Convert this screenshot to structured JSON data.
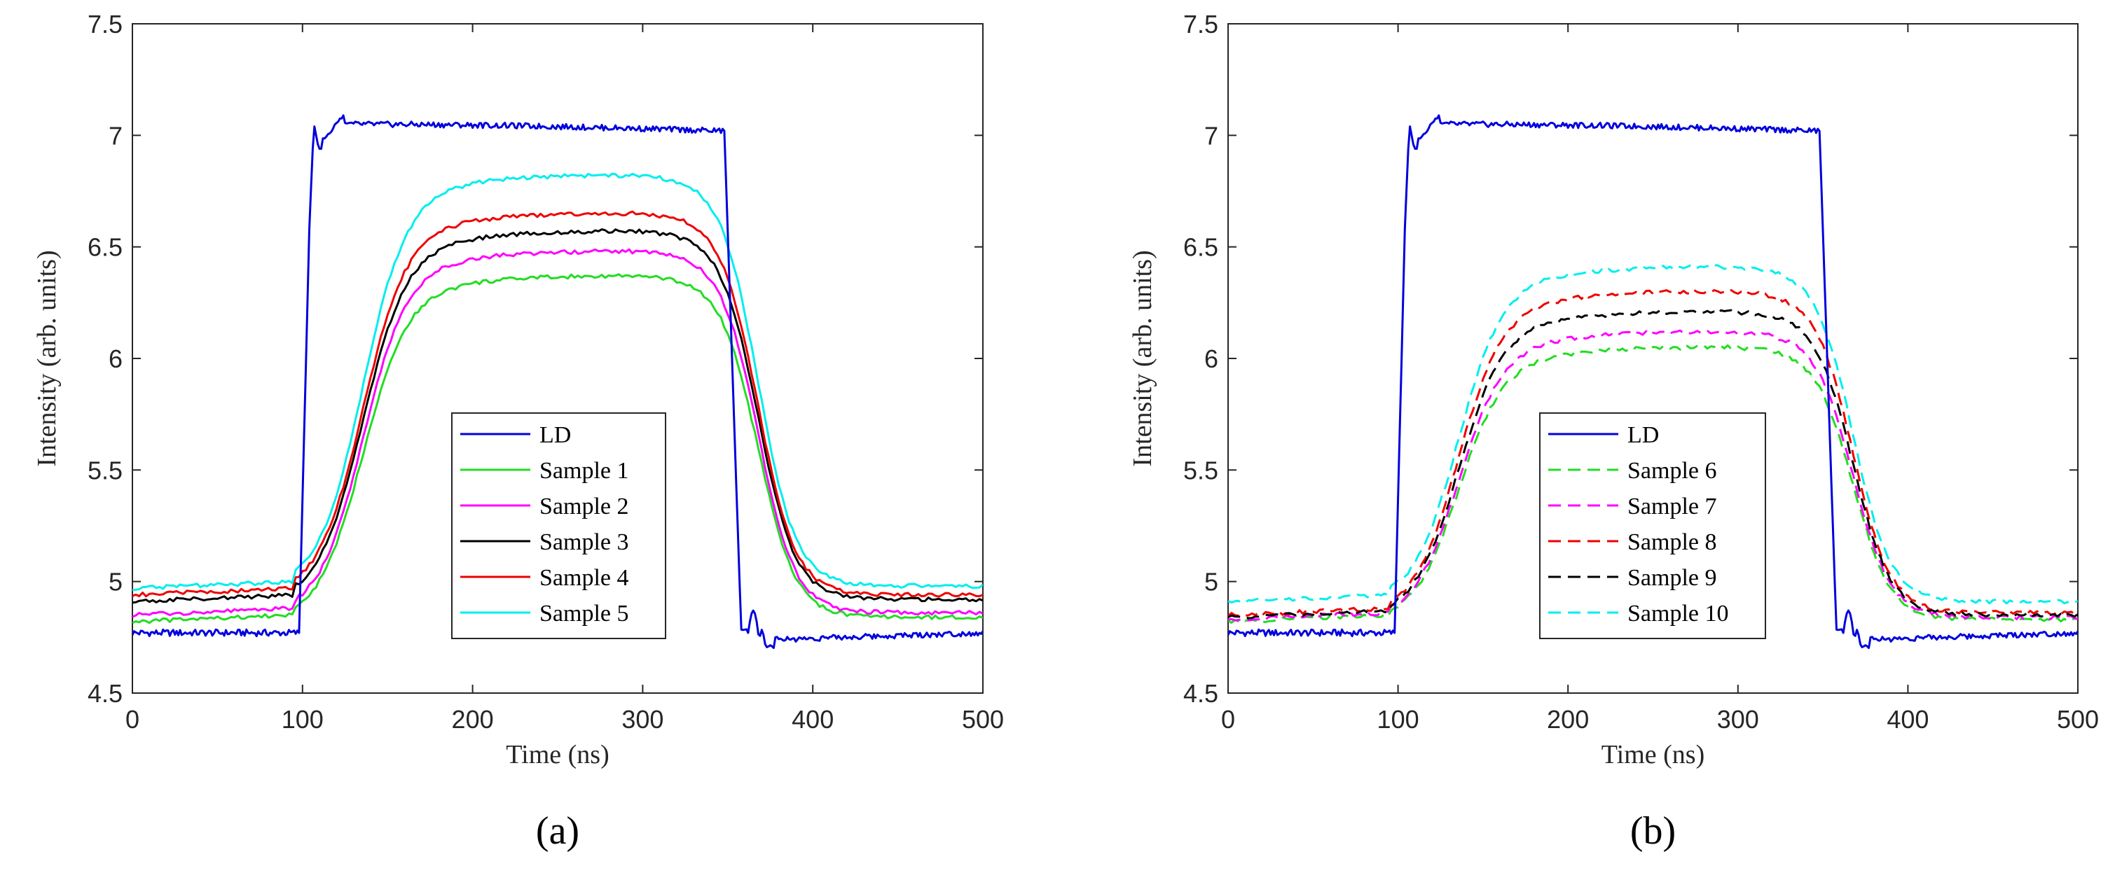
{
  "chart_data": [
    {
      "type": "line",
      "panel_label": "(a)",
      "xlabel": "Time (ns)",
      "ylabel": "Intensity (arb. units)",
      "xlim": [
        0,
        500
      ],
      "ylim": [
        4.5,
        7.5
      ],
      "xticks": [
        0,
        100,
        200,
        300,
        400,
        500
      ],
      "yticks": [
        4.5,
        5,
        5.5,
        6,
        6.5,
        7,
        7.5
      ],
      "xtick_labels": [
        "0",
        "100",
        "200",
        "300",
        "400",
        "500"
      ],
      "ytick_labels": [
        "4.5",
        "5",
        "5.5",
        "6",
        "6.5",
        "7",
        "7.5"
      ],
      "legend_position": "center",
      "series": [
        {
          "name": "LD",
          "color": "#0000dd",
          "dash": "solid",
          "kind": "ld",
          "base": 4.77,
          "peak": 7.03
        },
        {
          "name": "Sample 1",
          "color": "#22dd22",
          "dash": "solid",
          "kind": "sample",
          "base": 4.82,
          "peak": 6.37,
          "end": 4.84
        },
        {
          "name": "Sample 2",
          "color": "#ff00ff",
          "dash": "solid",
          "kind": "sample",
          "base": 4.85,
          "peak": 6.48,
          "end": 4.86
        },
        {
          "name": "Sample 3",
          "color": "#000000",
          "dash": "solid",
          "kind": "sample",
          "base": 4.91,
          "peak": 6.57,
          "end": 4.92
        },
        {
          "name": "Sample 4",
          "color": "#ee0000",
          "dash": "solid",
          "kind": "sample",
          "base": 4.94,
          "peak": 6.65,
          "end": 4.94
        },
        {
          "name": "Sample 5",
          "color": "#00eeee",
          "dash": "solid",
          "kind": "sample",
          "base": 4.97,
          "peak": 6.82,
          "end": 4.98
        }
      ]
    },
    {
      "type": "line",
      "panel_label": "(b)",
      "xlabel": "Time (ns)",
      "ylabel": "Intensity (arb. units)",
      "xlim": [
        0,
        500
      ],
      "ylim": [
        4.5,
        7.5
      ],
      "xticks": [
        0,
        100,
        200,
        300,
        400,
        500
      ],
      "yticks": [
        4.5,
        5,
        5.5,
        6,
        6.5,
        7,
        7.5
      ],
      "xtick_labels": [
        "0",
        "100",
        "200",
        "300",
        "400",
        "500"
      ],
      "ytick_labels": [
        "4.5",
        "5",
        "5.5",
        "6",
        "6.5",
        "7",
        "7.5"
      ],
      "legend_position": "center",
      "series": [
        {
          "name": "LD",
          "color": "#0000dd",
          "dash": "solid",
          "kind": "ld",
          "base": 4.77,
          "peak": 7.03
        },
        {
          "name": "Sample 6",
          "color": "#22dd22",
          "dash": "dashed",
          "kind": "sample",
          "base": 4.82,
          "peak": 6.05,
          "end": 4.83
        },
        {
          "name": "Sample 7",
          "color": "#ff00ff",
          "dash": "dashed",
          "kind": "sample",
          "base": 4.83,
          "peak": 6.12,
          "end": 4.84
        },
        {
          "name": "Sample 8",
          "color": "#ee0000",
          "dash": "dashed",
          "kind": "sample",
          "base": 4.85,
          "peak": 6.3,
          "end": 4.86
        },
        {
          "name": "Sample 9",
          "color": "#000000",
          "dash": "dashed",
          "kind": "sample",
          "base": 4.84,
          "peak": 6.21,
          "end": 4.85
        },
        {
          "name": "Sample 10",
          "color": "#00eeee",
          "dash": "dashed",
          "kind": "sample",
          "base": 4.91,
          "peak": 6.41,
          "end": 4.91
        }
      ]
    }
  ]
}
